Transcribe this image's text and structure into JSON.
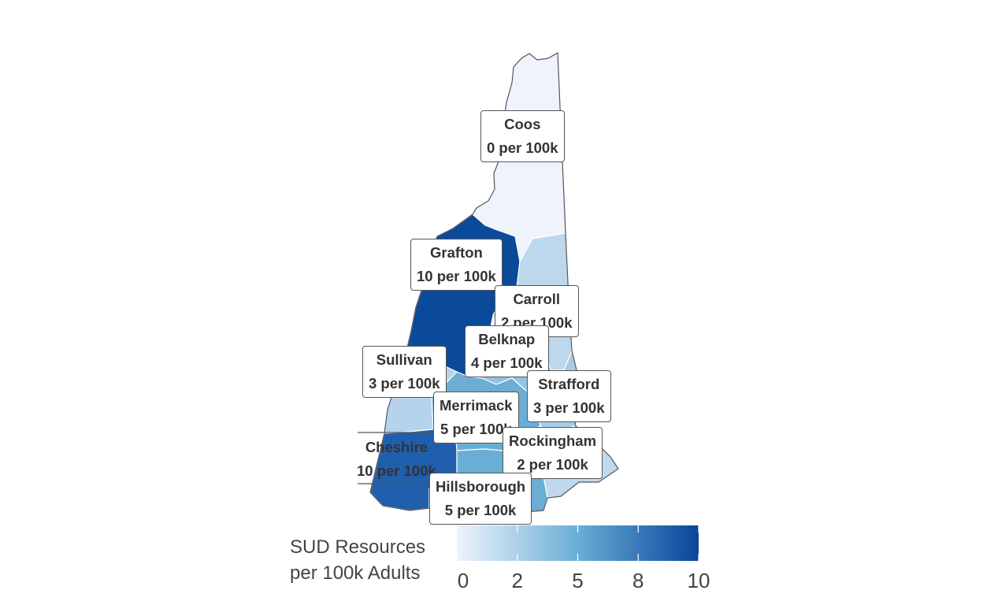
{
  "map": {
    "counties": [
      {
        "name": "Coos",
        "value": 0,
        "label_line2": "0 per 100k",
        "color": "#eef3fc"
      },
      {
        "name": "Grafton",
        "value": 10,
        "label_line2": "10 per 100k",
        "color": "#0b4a9a"
      },
      {
        "name": "Carroll",
        "value": 2,
        "label_line2": "2 per 100k",
        "color": "#bdd7ec"
      },
      {
        "name": "Belknap",
        "value": 4,
        "label_line2": "4 per 100k",
        "color": "#92c2e0"
      },
      {
        "name": "Sullivan",
        "value": 3,
        "label_line2": "3 per 100k",
        "color": "#b5d3eb"
      },
      {
        "name": "Strafford",
        "value": 3,
        "label_line2": "3 per 100k",
        "color": "#a8cce6"
      },
      {
        "name": "Merrimack",
        "value": 5,
        "label_line2": "5 per 100k",
        "color": "#6aaed6"
      },
      {
        "name": "Rockingham",
        "value": 2,
        "label_line2": "2 per 100k",
        "color": "#c1d9ed"
      },
      {
        "name": "Cheshire",
        "value": 10,
        "label_line2": "10 per 100k",
        "color": "#1f5fae"
      },
      {
        "name": "Hillsborough",
        "value": 5,
        "label_line2": "5 per 100k",
        "color": "#6aaed6"
      }
    ]
  },
  "legend": {
    "title_line1": "SUD Resources",
    "title_line2": "per 100k Adults",
    "min": 0,
    "max": 10,
    "color_low": "#eef3fc",
    "color_mid": "#6aaed6",
    "color_high": "#08459a",
    "ticks": [
      {
        "value": 0,
        "label": "0"
      },
      {
        "value": 2.5,
        "label": "2"
      },
      {
        "value": 5,
        "label": "5"
      },
      {
        "value": 7.5,
        "label": "8"
      },
      {
        "value": 10,
        "label": "10"
      }
    ]
  }
}
